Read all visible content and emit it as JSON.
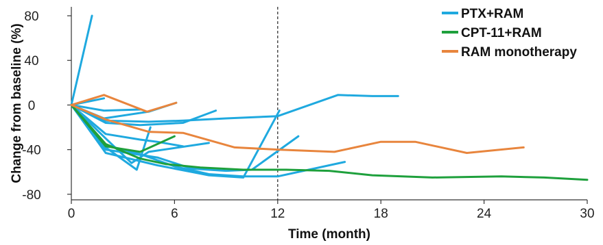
{
  "chart_data": {
    "type": "line",
    "xlabel": "Time (month)",
    "ylabel": "Change from baseline (%)",
    "xlim": [
      0,
      30
    ],
    "ylim": [
      -85,
      88
    ],
    "xticks": [
      0,
      6,
      12,
      18,
      24,
      30
    ],
    "xtick_labels": [
      "0",
      "6",
      "12",
      "18",
      "24",
      "30"
    ],
    "yticks": [
      80,
      40,
      0,
      -40,
      -80
    ],
    "ytick_labels": [
      "80",
      "40",
      "0",
      "-40",
      "-80"
    ],
    "reference_line_x": 12,
    "grid": false,
    "legend_position": "top-right",
    "legend": [
      {
        "label": "PTX+RAM",
        "color": "#1fa9df"
      },
      {
        "label": "CPT-11+RAM",
        "color": "#1ea03c"
      },
      {
        "label": "RAM monotherapy",
        "color": "#e8853d"
      }
    ],
    "series": [
      {
        "group": "PTX+RAM",
        "color": "#1fa9df",
        "points": [
          [
            0,
            0
          ],
          [
            1.2,
            80
          ]
        ]
      },
      {
        "group": "PTX+RAM",
        "color": "#1fa9df",
        "points": [
          [
            0,
            0
          ],
          [
            1.9,
            6
          ]
        ]
      },
      {
        "group": "PTX+RAM",
        "color": "#1fa9df",
        "points": [
          [
            0,
            0
          ],
          [
            1.9,
            -5
          ],
          [
            4,
            -4
          ]
        ]
      },
      {
        "group": "PTX+RAM",
        "color": "#1fa9df",
        "points": [
          [
            0,
            0
          ],
          [
            1.9,
            -12
          ],
          [
            4.5,
            -6
          ],
          [
            6.1,
            2
          ]
        ]
      },
      {
        "group": "PTX+RAM",
        "color": "#1fa9df",
        "points": [
          [
            0,
            0
          ],
          [
            1.9,
            -14
          ],
          [
            4.5,
            -15
          ],
          [
            6.5,
            -14
          ],
          [
            9,
            -12
          ],
          [
            12,
            -10
          ],
          [
            15.5,
            9
          ],
          [
            17.5,
            8
          ],
          [
            19,
            8
          ]
        ]
      },
      {
        "group": "PTX+RAM",
        "color": "#1fa9df",
        "points": [
          [
            0,
            0
          ],
          [
            2,
            -16
          ],
          [
            4,
            -18
          ],
          [
            6.5,
            -16
          ],
          [
            8.4,
            -5
          ]
        ]
      },
      {
        "group": "PTX+RAM",
        "color": "#1fa9df",
        "points": [
          [
            0,
            0
          ],
          [
            2,
            -26
          ],
          [
            4,
            -31
          ],
          [
            5,
            -33
          ],
          [
            6.5,
            -37
          ]
        ]
      },
      {
        "group": "PTX+RAM",
        "color": "#1fa9df",
        "points": [
          [
            0,
            0
          ],
          [
            2,
            -30
          ],
          [
            3.5,
            -52
          ],
          [
            4.5,
            -42
          ],
          [
            8,
            -34
          ]
        ]
      },
      {
        "group": "PTX+RAM",
        "color": "#1fa9df",
        "points": [
          [
            0,
            0
          ],
          [
            2,
            -38
          ],
          [
            3.8,
            -58
          ],
          [
            4.6,
            -20
          ]
        ]
      },
      {
        "group": "PTX+RAM",
        "color": "#1fa9df",
        "points": [
          [
            0,
            0
          ],
          [
            2,
            -43
          ],
          [
            5,
            -54
          ],
          [
            8,
            -63
          ],
          [
            10,
            -65
          ],
          [
            12.1,
            -5
          ]
        ]
      },
      {
        "group": "PTX+RAM",
        "color": "#1fa9df",
        "points": [
          [
            0,
            0
          ],
          [
            2,
            -36
          ],
          [
            4,
            -44
          ],
          [
            6,
            -55
          ],
          [
            8,
            -62
          ],
          [
            10,
            -64
          ],
          [
            12,
            -64
          ],
          [
            15.9,
            -51
          ]
        ]
      },
      {
        "group": "PTX+RAM",
        "color": "#1fa9df",
        "points": [
          [
            0,
            0
          ],
          [
            2,
            -40
          ],
          [
            5,
            -47
          ],
          [
            7,
            -57
          ],
          [
            9,
            -59
          ],
          [
            10.5,
            -58
          ],
          [
            13.2,
            -28
          ]
        ]
      },
      {
        "group": "CPT-11+RAM",
        "color": "#1ea03c",
        "points": [
          [
            0,
            0
          ],
          [
            2,
            -37
          ],
          [
            4,
            -42
          ],
          [
            6,
            -28
          ]
        ]
      },
      {
        "group": "CPT-11+RAM",
        "color": "#1ea03c",
        "points": [
          [
            0,
            0
          ],
          [
            2,
            -35
          ],
          [
            4,
            -48
          ],
          [
            5.5,
            -53
          ],
          [
            7.5,
            -56
          ],
          [
            10,
            -58
          ],
          [
            12.5,
            -58
          ],
          [
            15,
            -59
          ],
          [
            17.5,
            -63
          ],
          [
            21,
            -65
          ],
          [
            25,
            -64
          ],
          [
            27.5,
            -65
          ],
          [
            30,
            -67
          ]
        ]
      },
      {
        "group": "RAM monotherapy",
        "color": "#e8853d",
        "points": [
          [
            0,
            0
          ],
          [
            1.9,
            9
          ],
          [
            4.4,
            -6
          ],
          [
            6.1,
            2
          ]
        ]
      },
      {
        "group": "RAM monotherapy",
        "color": "#e8853d",
        "points": [
          [
            0,
            0
          ],
          [
            2,
            -13
          ],
          [
            4.5,
            -24
          ],
          [
            6.5,
            -25
          ],
          [
            9.5,
            -38
          ],
          [
            12,
            -40
          ],
          [
            15.3,
            -42
          ],
          [
            18,
            -33
          ],
          [
            20,
            -33
          ],
          [
            23,
            -43
          ],
          [
            26.3,
            -38
          ]
        ]
      }
    ]
  }
}
